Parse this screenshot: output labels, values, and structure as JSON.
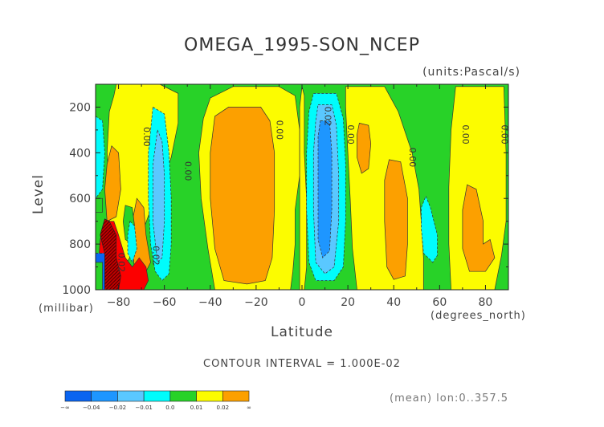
{
  "chart_data": {
    "type": "heatmap",
    "title": "OMEGA_1995-SON_NCEP",
    "units_label": "(units:Pascal/s)",
    "xlabel": "Latitude",
    "xunits": "(degrees_north)",
    "ylabel": "Level",
    "yunits": "(millibar)",
    "xlim": [
      -90,
      90
    ],
    "ylim": [
      1000,
      100
    ],
    "x_ticks": [
      -80,
      -60,
      -40,
      -20,
      0,
      20,
      40,
      60,
      80
    ],
    "x_tick_labels": [
      "−80",
      "−60",
      "−40",
      "−20",
      "0",
      "20",
      "40",
      "60",
      "80"
    ],
    "y_ticks": [
      200,
      400,
      600,
      800,
      1000
    ],
    "y_tick_labels": [
      "200",
      "400",
      "600",
      "800",
      "1000"
    ],
    "contour_interval": "CONTOUR INTERVAL = 1.000E-02",
    "mean_note": "(mean) lon:0..357.5",
    "colorbar": {
      "bins": [
        {
          "label": "−∞",
          "color": "#0a64f0"
        },
        {
          "label": "−0.04",
          "color": "#1e96ff"
        },
        {
          "label": "−0.02",
          "color": "#5ac8ff"
        },
        {
          "label": "−0.01",
          "color": "#00fcfc"
        },
        {
          "label": "0.0",
          "color": "#28d228"
        },
        {
          "label": "0.01",
          "color": "#fcfc00"
        },
        {
          "label": "0.02",
          "color": "#fca000"
        },
        {
          "label": "∞",
          "color": "#fc0000"
        }
      ]
    },
    "contour_labels": [
      {
        "text": "0.00",
        "lat": -69,
        "lev": 330
      },
      {
        "text": "0.00",
        "lat": -51,
        "lev": 480
      },
      {
        "text": "0.00",
        "lat": -11,
        "lev": 300
      },
      {
        "text": "0.02",
        "lat": 10,
        "lev": 240
      },
      {
        "text": "0.00",
        "lat": 20,
        "lev": 320
      },
      {
        "text": "0.00",
        "lat": 47,
        "lev": 420
      },
      {
        "text": "0.00",
        "lat": 70,
        "lev": 320
      },
      {
        "text": "0.00",
        "lat": 87,
        "lev": 320
      },
      {
        "text": "0.02",
        "lat": -65,
        "lev": 850
      },
      {
        "text": "0.02",
        "lat": -80,
        "lev": 880
      }
    ],
    "regions": [
      {
        "level": "0.0",
        "poly": [
          [
            -90,
            100
          ],
          [
            90,
            100
          ],
          [
            90,
            1000
          ],
          [
            -90,
            1000
          ]
        ]
      },
      {
        "level": "0.01",
        "poly": [
          [
            -81,
            100
          ],
          [
            -62,
            100
          ],
          [
            -54,
            140
          ],
          [
            -54,
            270
          ],
          [
            -57,
            420
          ],
          [
            -62,
            560
          ],
          [
            -66,
            650
          ],
          [
            -70,
            760
          ],
          [
            -74,
            840
          ],
          [
            -80,
            940
          ],
          [
            -86,
            1000
          ],
          [
            -90,
            1000
          ],
          [
            -90,
            880
          ],
          [
            -86,
            820
          ],
          [
            -84,
            700
          ],
          [
            -84,
            560
          ],
          [
            -85,
            400
          ],
          [
            -84,
            220
          ],
          [
            -82,
            150
          ]
        ]
      },
      {
        "level": "0.01",
        "poly": [
          [
            -40,
            160
          ],
          [
            -30,
            110
          ],
          [
            -10,
            110
          ],
          [
            -3,
            150
          ],
          [
            -1,
            300
          ],
          [
            -1,
            500
          ],
          [
            -3,
            650
          ],
          [
            -3,
            800
          ],
          [
            -4,
            920
          ],
          [
            -5,
            1000
          ],
          [
            -38,
            1000
          ],
          [
            -41,
            820
          ],
          [
            -44,
            600
          ],
          [
            -45,
            400
          ],
          [
            -43,
            250
          ]
        ]
      },
      {
        "level": "0.01",
        "poly": [
          [
            0,
            110
          ],
          [
            1,
            150
          ],
          [
            1,
            400
          ],
          [
            2,
            600
          ],
          [
            2,
            900
          ],
          [
            1,
            1000
          ],
          [
            -1,
            1000
          ],
          [
            -1,
            600
          ],
          [
            -1,
            200
          ]
        ]
      },
      {
        "level": "0.01",
        "poly": [
          [
            19,
            110
          ],
          [
            36,
            110
          ],
          [
            42,
            220
          ],
          [
            48,
            400
          ],
          [
            51,
            560
          ],
          [
            52,
            700
          ],
          [
            53,
            860
          ],
          [
            53,
            1000
          ],
          [
            24,
            1000
          ],
          [
            22,
            820
          ],
          [
            21,
            600
          ],
          [
            20,
            400
          ],
          [
            19,
            200
          ]
        ]
      },
      {
        "level": "0.01",
        "poly": [
          [
            67,
            110
          ],
          [
            88,
            110
          ],
          [
            89,
            400
          ],
          [
            89,
            700
          ],
          [
            87,
            850
          ],
          [
            84,
            1000
          ],
          [
            65,
            1000
          ],
          [
            64,
            800
          ],
          [
            64,
            550
          ],
          [
            65,
            300
          ]
        ]
      },
      {
        "level": "0.02",
        "poly": [
          [
            -38,
            240
          ],
          [
            -32,
            200
          ],
          [
            -18,
            200
          ],
          [
            -14,
            260
          ],
          [
            -12,
            400
          ],
          [
            -12,
            650
          ],
          [
            -13,
            860
          ],
          [
            -16,
            960
          ],
          [
            -24,
            975
          ],
          [
            -34,
            960
          ],
          [
            -38,
            820
          ],
          [
            -40,
            600
          ],
          [
            -40,
            400
          ]
        ]
      },
      {
        "level": "0.02",
        "poly": [
          [
            38,
            430
          ],
          [
            43,
            440
          ],
          [
            46,
            600
          ],
          [
            46,
            800
          ],
          [
            45,
            940
          ],
          [
            40,
            955
          ],
          [
            37,
            900
          ],
          [
            36,
            700
          ],
          [
            36,
            520
          ]
        ]
      },
      {
        "level": "0.02",
        "poly": [
          [
            25,
            270
          ],
          [
            29,
            280
          ],
          [
            30,
            360
          ],
          [
            29,
            470
          ],
          [
            26,
            490
          ],
          [
            24,
            420
          ],
          [
            24,
            320
          ]
        ]
      },
      {
        "level": "0.02",
        "poly": [
          [
            72,
            540
          ],
          [
            76,
            560
          ],
          [
            79,
            700
          ],
          [
            79,
            800
          ],
          [
            82,
            780
          ],
          [
            84,
            860
          ],
          [
            80,
            920
          ],
          [
            73,
            920
          ],
          [
            70,
            820
          ],
          [
            70,
            650
          ]
        ]
      },
      {
        "level": "0.02",
        "poly": [
          [
            -72,
            600
          ],
          [
            -69,
            640
          ],
          [
            -68,
            760
          ],
          [
            -66,
            880
          ],
          [
            -70,
            960
          ],
          [
            -73,
            920
          ],
          [
            -74,
            800
          ],
          [
            -74,
            700
          ]
        ]
      },
      {
        "level": "0.02",
        "poly": [
          [
            -83,
            370
          ],
          [
            -80,
            400
          ],
          [
            -79,
            560
          ],
          [
            -81,
            680
          ],
          [
            -85,
            700
          ],
          [
            -86,
            560
          ],
          [
            -85,
            450
          ]
        ]
      },
      {
        "level": "∞",
        "poly": [
          [
            -86,
            700
          ],
          [
            -82,
            700
          ],
          [
            -80,
            760
          ],
          [
            -77,
            860
          ],
          [
            -74,
            900
          ],
          [
            -71,
            860
          ],
          [
            -68,
            900
          ],
          [
            -67,
            960
          ],
          [
            -69,
            1000
          ],
          [
            -88,
            1000
          ],
          [
            -89,
            920
          ],
          [
            -88,
            780
          ]
        ]
      },
      {
        "level": "0.0",
        "poly": [
          [
            -77,
            630
          ],
          [
            -74,
            640
          ],
          [
            -73,
            720
          ],
          [
            -74,
            800
          ],
          [
            -77,
            780
          ],
          [
            -78,
            700
          ]
        ]
      },
      {
        "level": "0.0",
        "poly": [
          [
            -90,
            600
          ],
          [
            -87,
            600
          ],
          [
            -87,
            660
          ],
          [
            -90,
            660
          ]
        ]
      },
      {
        "level": "−0.01",
        "poly": [
          [
            -65,
            200
          ],
          [
            -60,
            230
          ],
          [
            -58,
            400
          ],
          [
            -57,
            600
          ],
          [
            -57,
            800
          ],
          [
            -58,
            930
          ],
          [
            -61,
            960
          ],
          [
            -64,
            920
          ],
          [
            -66,
            800
          ],
          [
            -67,
            600
          ],
          [
            -67,
            400
          ]
        ]
      },
      {
        "level": "−0.01",
        "poly": [
          [
            5,
            140
          ],
          [
            15,
            140
          ],
          [
            18,
            250
          ],
          [
            19,
            450
          ],
          [
            19,
            700
          ],
          [
            18,
            900
          ],
          [
            14,
            960
          ],
          [
            6,
            960
          ],
          [
            3,
            880
          ],
          [
            2,
            650
          ],
          [
            2,
            400
          ],
          [
            3,
            220
          ]
        ]
      },
      {
        "level": "−0.01",
        "poly": [
          [
            -90,
            240
          ],
          [
            -87,
            260
          ],
          [
            -86,
            400
          ],
          [
            -87,
            560
          ],
          [
            -90,
            600
          ]
        ]
      },
      {
        "level": "−0.01",
        "poly": [
          [
            54,
            590
          ],
          [
            56,
            640
          ],
          [
            59,
            760
          ],
          [
            59,
            850
          ],
          [
            57,
            880
          ],
          [
            53,
            840
          ],
          [
            52,
            730
          ],
          [
            52,
            640
          ]
        ]
      },
      {
        "level": "−0.01",
        "poly": [
          [
            -75,
            700
          ],
          [
            -73,
            720
          ],
          [
            -72,
            820
          ],
          [
            -74,
            880
          ],
          [
            -76,
            840
          ],
          [
            -76,
            760
          ]
        ]
      },
      {
        "level": "−0.02",
        "poly": [
          [
            -63,
            300
          ],
          [
            -61,
            350
          ],
          [
            -60,
            500
          ],
          [
            -60,
            700
          ],
          [
            -61,
            860
          ],
          [
            -63,
            880
          ],
          [
            -65,
            700
          ],
          [
            -65,
            450
          ]
        ]
      },
      {
        "level": "−0.02",
        "poly": [
          [
            7,
            190
          ],
          [
            13,
            190
          ],
          [
            15,
            280
          ],
          [
            16,
            500
          ],
          [
            16,
            700
          ],
          [
            14,
            900
          ],
          [
            10,
            930
          ],
          [
            6,
            880
          ],
          [
            5,
            650
          ],
          [
            5,
            400
          ],
          [
            6,
            260
          ]
        ]
      },
      {
        "level": "−0.04",
        "poly": [
          [
            8,
            260
          ],
          [
            12,
            260
          ],
          [
            13,
            400
          ],
          [
            13,
            650
          ],
          [
            12,
            830
          ],
          [
            9,
            860
          ],
          [
            7,
            780
          ],
          [
            7,
            500
          ],
          [
            7,
            330
          ]
        ]
      },
      {
        "level": "−∞",
        "poly": [
          [
            -90,
            840
          ],
          [
            -86,
            840
          ],
          [
            -86,
            1000
          ],
          [
            -90,
            1000
          ]
        ]
      },
      {
        "level": "0.0",
        "poly": [
          [
            -90,
            880
          ],
          [
            -87,
            880
          ],
          [
            -87,
            1000
          ],
          [
            -90,
            1000
          ]
        ]
      }
    ],
    "hatch": {
      "poly": [
        [
          -86,
          690
        ],
        [
          -84,
          700
        ],
        [
          -81,
          760
        ],
        [
          -81,
          860
        ],
        [
          -79,
          940
        ],
        [
          -80,
          1000
        ],
        [
          -86,
          1000
        ],
        [
          -86,
          840
        ],
        [
          -88,
          760
        ]
      ]
    }
  }
}
